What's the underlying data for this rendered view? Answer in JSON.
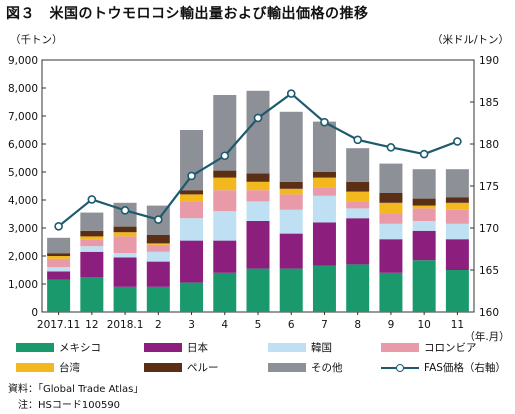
{
  "title": "図３　米国のトウモロコシ輸出量および輸出価格の推移",
  "chart_data": {
    "type": "bar",
    "stacked": true,
    "left_unit": "（千トン）",
    "right_unit": "（米ドル/トン）",
    "x_unit": "（年.月）",
    "categories": [
      "2017.11",
      "12",
      "2018.1",
      "2",
      "3",
      "4",
      "5",
      "6",
      "7",
      "8",
      "9",
      "10",
      "11"
    ],
    "y_left": {
      "min": 0,
      "max": 9000,
      "ticks": [
        "0",
        "1,000",
        "2,000",
        "3,000",
        "4,000",
        "5,000",
        "6,000",
        "7,000",
        "8,000",
        "9,000"
      ]
    },
    "y_right": {
      "min": 160,
      "max": 190,
      "ticks": [
        "160",
        "165",
        "170",
        "175",
        "180",
        "185",
        "190"
      ]
    },
    "series": [
      {
        "name": "メキシコ",
        "color": "#1a9a6c",
        "values": [
          1150,
          1250,
          900,
          900,
          1050,
          1400,
          1550,
          1550,
          1650,
          1700,
          1400,
          1850,
          1500
        ]
      },
      {
        "name": "日本",
        "color": "#8c1f7e",
        "values": [
          300,
          900,
          1050,
          900,
          1500,
          1150,
          1700,
          1250,
          1550,
          1650,
          1200,
          1050,
          1100
        ]
      },
      {
        "name": "韓国",
        "color": "#bfe0f2",
        "values": [
          150,
          200,
          150,
          350,
          800,
          1050,
          700,
          850,
          950,
          350,
          550,
          350,
          550
        ]
      },
      {
        "name": "コロンビア",
        "color": "#e89aa8",
        "values": [
          300,
          250,
          600,
          250,
          600,
          750,
          400,
          550,
          300,
          250,
          350,
          450,
          500
        ]
      },
      {
        "name": "台湾",
        "color": "#f2b81e",
        "values": [
          100,
          100,
          150,
          50,
          250,
          450,
          300,
          200,
          350,
          350,
          400,
          100,
          250
        ]
      },
      {
        "name": "ペルー",
        "color": "#5a2f15",
        "values": [
          100,
          200,
          200,
          300,
          150,
          250,
          300,
          250,
          200,
          350,
          350,
          250,
          200
        ]
      },
      {
        "name": "その他",
        "color": "#8d9096",
        "values": [
          550,
          650,
          850,
          1050,
          2150,
          2700,
          2950,
          2500,
          1800,
          1200,
          1050,
          1050,
          1000
        ]
      }
    ],
    "line": {
      "name": "FAS価格（右軸）",
      "color": "#1d5a6e",
      "axis": "right",
      "values": [
        170.2,
        173.4,
        172.1,
        171.0,
        176.2,
        178.6,
        183.1,
        186.0,
        182.6,
        180.5,
        179.6,
        178.8,
        180.3
      ]
    },
    "legend_position": "bottom"
  },
  "notes": {
    "source": "資料：「Global Trade Atlas」",
    "note": "注：HSコード100590"
  }
}
